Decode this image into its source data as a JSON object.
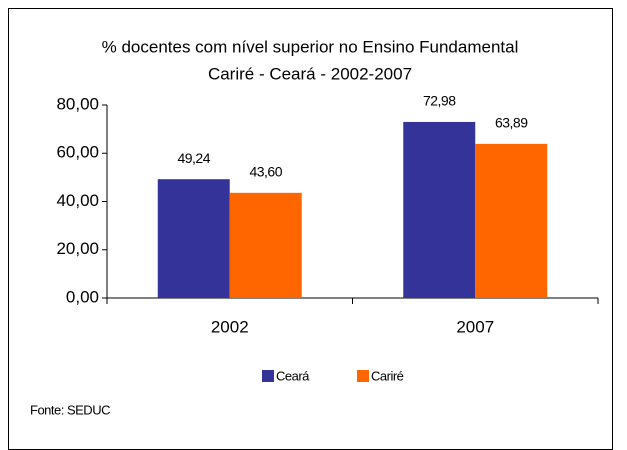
{
  "chart_data": {
    "type": "bar",
    "title": [
      "% docentes com nível superior no Ensino Fundamental",
      "Cariré - Ceará - 2002-2007"
    ],
    "categories": [
      "2002",
      "2007"
    ],
    "series": [
      {
        "name": "Ceará",
        "color": "#333399",
        "values": [
          49.24,
          72.98
        ],
        "value_labels": [
          "49,24",
          "72,98"
        ]
      },
      {
        "name": "Cariré",
        "color": "#ff6600",
        "values": [
          43.6,
          63.89
        ],
        "value_labels": [
          "43,60",
          "63,89"
        ]
      }
    ],
    "ylim": [
      0,
      80
    ],
    "yticks": [
      {
        "value": 0,
        "label": "0,00"
      },
      {
        "value": 20,
        "label": "20,00"
      },
      {
        "value": 40,
        "label": "40,00"
      },
      {
        "value": 60,
        "label": "60,00"
      },
      {
        "value": 80,
        "label": "80,00"
      }
    ],
    "legend": "bottom",
    "source": "Fonte: SEDUC"
  }
}
